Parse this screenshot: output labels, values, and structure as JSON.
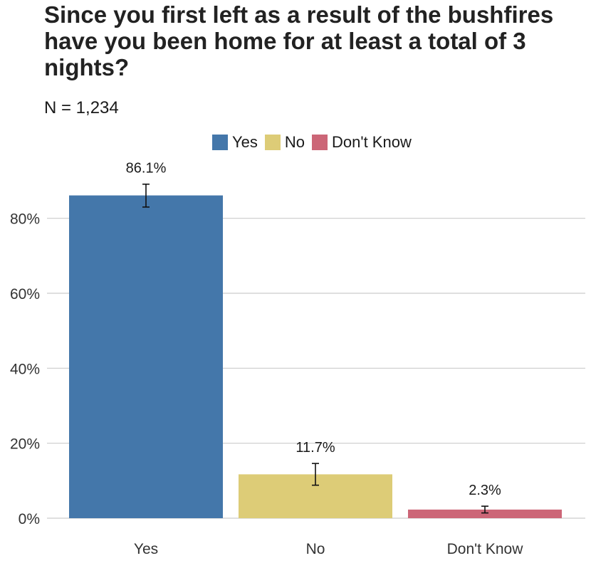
{
  "chart_data": {
    "type": "bar",
    "title": "Since you first left as a result of the bushfires have you been home for at least a total of 3 nights?",
    "subtitle": "N = 1,234",
    "categories": [
      "Yes",
      "No",
      "Don't Know"
    ],
    "values": [
      86.1,
      11.7,
      2.3
    ],
    "value_labels": [
      "86.1%",
      "11.7%",
      "2.3%"
    ],
    "error_bars": [
      {
        "low": 83.0,
        "high": 89.1
      },
      {
        "low": 8.8,
        "high": 14.6
      },
      {
        "low": 1.4,
        "high": 3.2
      }
    ],
    "colors": [
      "#4477aa",
      "#ddcc77",
      "#cc6677"
    ],
    "legend": {
      "placement": "top",
      "entries": [
        "Yes",
        "No",
        "Don't Know"
      ]
    },
    "yticks": [
      "0%",
      "20%",
      "40%",
      "60%",
      "80%"
    ],
    "ytick_values": [
      0,
      20,
      40,
      60,
      80
    ],
    "ylim": [
      0,
      90
    ],
    "grid": true
  }
}
